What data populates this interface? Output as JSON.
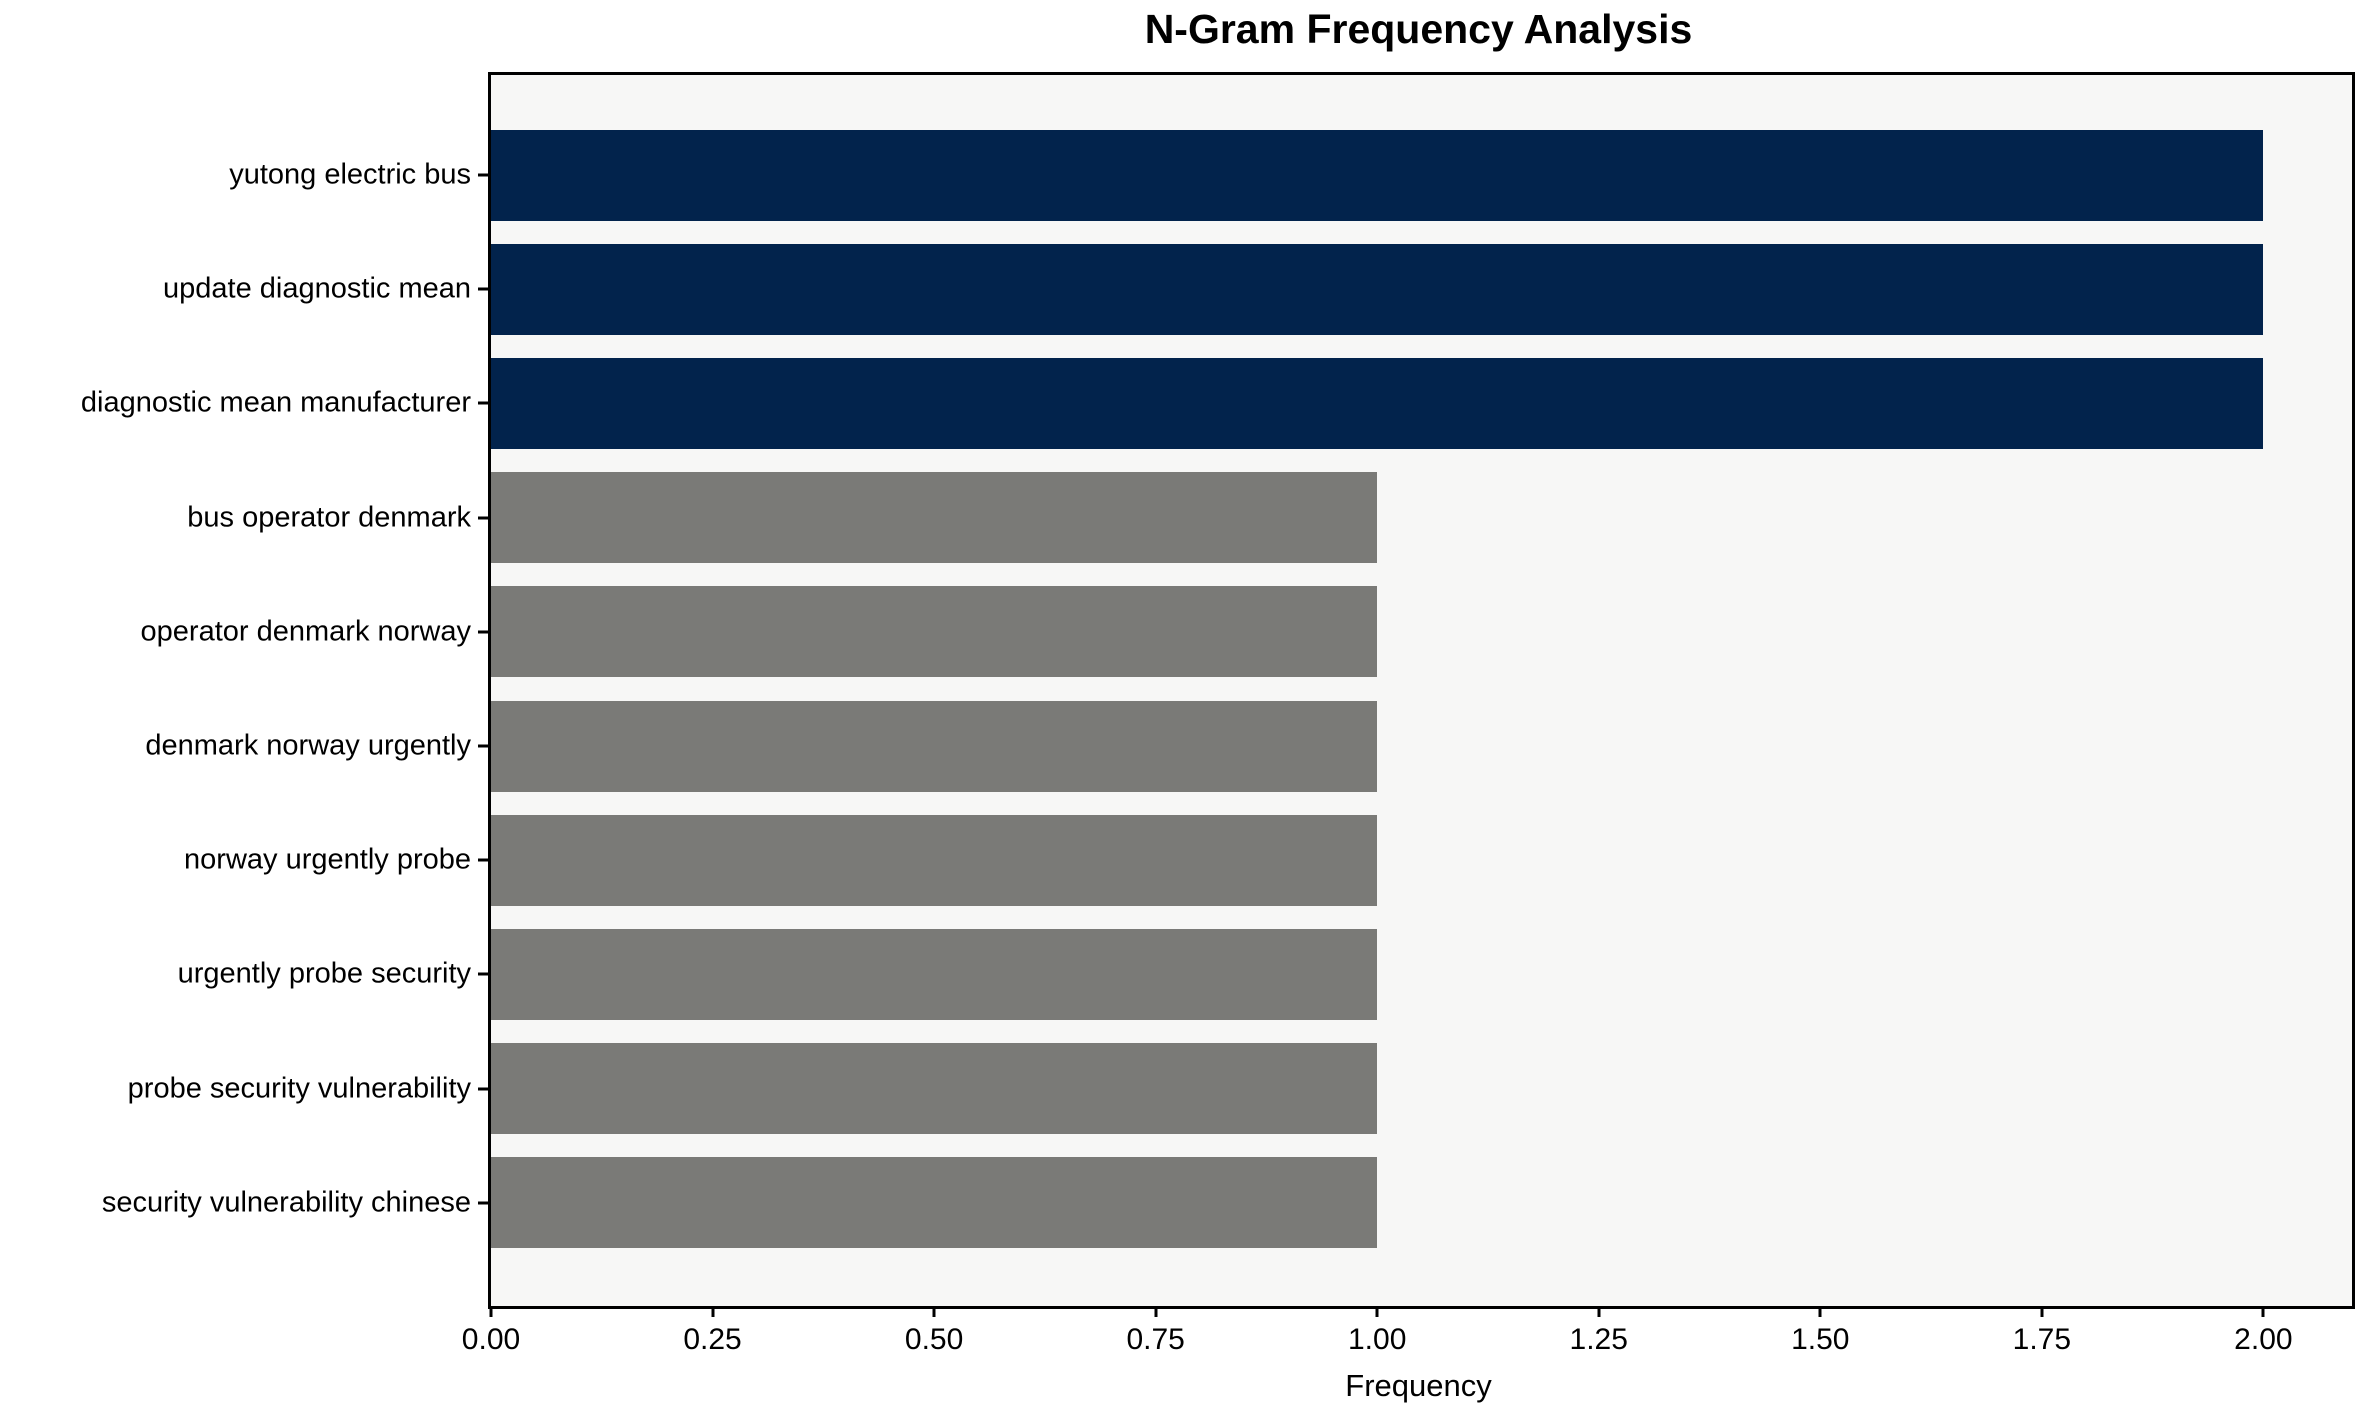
{
  "chart_data": {
    "type": "bar",
    "orientation": "horizontal",
    "title": "N-Gram Frequency Analysis",
    "xlabel": "Frequency",
    "ylabel": "",
    "categories": [
      "yutong electric bus",
      "update diagnostic mean",
      "diagnostic mean manufacturer",
      "bus operator denmark",
      "operator denmark norway",
      "denmark norway urgently",
      "norway urgently probe",
      "urgently probe security",
      "probe security vulnerability",
      "security vulnerability chinese"
    ],
    "values": [
      2,
      2,
      2,
      1,
      1,
      1,
      1,
      1,
      1,
      1
    ],
    "bar_colors": [
      "#02234c",
      "#02234c",
      "#02234c",
      "#7a7a77",
      "#7a7a77",
      "#7a7a77",
      "#7a7a77",
      "#7a7a77",
      "#7a7a77",
      "#7a7a77"
    ],
    "color_legend": {
      "frequency_2": "#02234c",
      "frequency_1": "#7a7a77"
    },
    "xlim": [
      0,
      2.1
    ],
    "xtick_labels": [
      "0.00",
      "0.25",
      "0.50",
      "0.75",
      "1.00",
      "1.25",
      "1.50",
      "1.75",
      "2.00"
    ],
    "xtick_values": [
      0,
      0.25,
      0.5,
      0.75,
      1.0,
      1.25,
      1.5,
      1.75,
      2.0
    ],
    "grid": false,
    "legend_position": "none",
    "plot_background": "#f7f7f6",
    "figure_background": "#ffffff"
  }
}
